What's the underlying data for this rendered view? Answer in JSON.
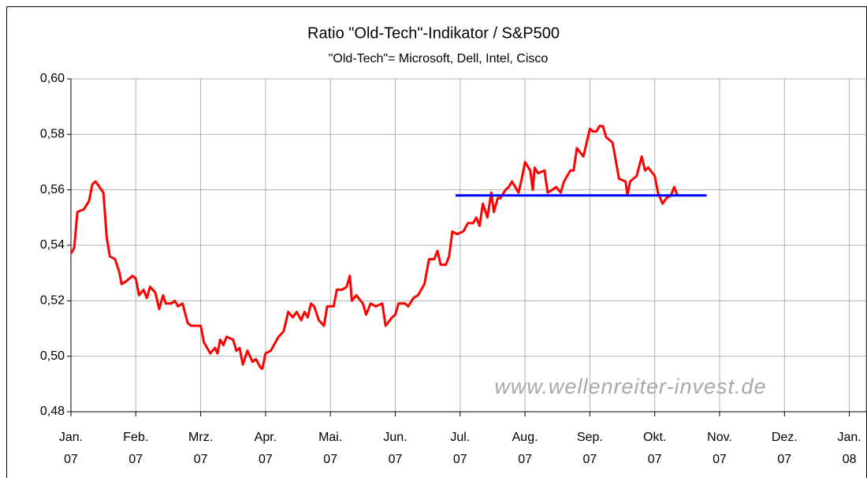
{
  "chart_data": {
    "type": "line",
    "title": "Ratio \"Old-Tech\"-Indikator / S&P500",
    "subtitle": "\"Old-Tech\"= Microsoft, Dell, Intel, Cisco",
    "annotation": "www.wellenreiter-invest.de",
    "grid": true,
    "xlim": [
      0,
      12.26
    ],
    "xticks": [
      {
        "value": 0,
        "label": "Jan.\n07"
      },
      {
        "value": 1,
        "label": "Feb.\n07"
      },
      {
        "value": 2,
        "label": "Mrz.\n07"
      },
      {
        "value": 3,
        "label": "Apr.\n07"
      },
      {
        "value": 4,
        "label": "Mai.\n07"
      },
      {
        "value": 5,
        "label": "Jun.\n07"
      },
      {
        "value": 6,
        "label": "Jul.\n07"
      },
      {
        "value": 7,
        "label": "Aug.\n07"
      },
      {
        "value": 8,
        "label": "Sep.\n07"
      },
      {
        "value": 9,
        "label": "Okt.\n07"
      },
      {
        "value": 10,
        "label": "Nov.\n07"
      },
      {
        "value": 11,
        "label": "Dez.\n07"
      },
      {
        "value": 12,
        "label": "Jan.\n08"
      }
    ],
    "ylim": [
      0.48,
      0.6
    ],
    "yticks": [
      {
        "value": 0.48,
        "label": "0,48"
      },
      {
        "value": 0.5,
        "label": "0,50"
      },
      {
        "value": 0.52,
        "label": "0,52"
      },
      {
        "value": 0.54,
        "label": "0,54"
      },
      {
        "value": 0.56,
        "label": "0,56"
      },
      {
        "value": 0.58,
        "label": "0,58"
      },
      {
        "value": 0.6,
        "label": "0,60"
      }
    ],
    "series": [
      {
        "color": "#ff0000",
        "x": [
          0,
          0.05,
          0.1,
          0.2,
          0.28,
          0.33,
          0.38,
          0.5,
          0.55,
          0.6,
          0.68,
          0.75,
          0.78,
          0.85,
          0.95,
          1.0,
          1.05,
          1.12,
          1.17,
          1.22,
          1.3,
          1.36,
          1.42,
          1.46,
          1.55,
          1.6,
          1.65,
          1.72,
          1.8,
          1.85,
          2.0,
          2.05,
          2.15,
          2.22,
          2.26,
          2.3,
          2.35,
          2.4,
          2.5,
          2.55,
          2.6,
          2.65,
          2.72,
          2.8,
          2.85,
          2.92,
          2.95,
          3.0,
          3.08,
          3.2,
          3.28,
          3.35,
          3.42,
          3.48,
          3.55,
          3.6,
          3.65,
          3.7,
          3.75,
          3.82,
          3.9,
          3.95,
          4.05,
          4.1,
          4.18,
          4.25,
          4.3,
          4.33,
          4.4,
          4.5,
          4.55,
          4.62,
          4.7,
          4.8,
          4.85,
          4.95,
          5.0,
          5.05,
          5.15,
          5.2,
          5.28,
          5.35,
          5.45,
          5.52,
          5.6,
          5.65,
          5.7,
          5.78,
          5.83,
          5.88,
          5.95,
          6.05,
          6.12,
          6.2,
          6.25,
          6.3,
          6.35,
          6.42,
          6.48,
          6.52,
          6.58,
          6.62,
          6.7,
          6.75,
          6.8,
          6.85,
          6.9,
          6.95,
          7.0,
          7.08,
          7.12,
          7.15,
          7.2,
          7.3,
          7.35,
          7.42,
          7.48,
          7.55,
          7.6,
          7.7,
          7.75,
          7.8,
          7.9,
          8.0,
          8.05,
          8.1,
          8.15,
          8.2,
          8.25,
          8.35,
          8.45,
          8.55,
          8.58,
          8.62,
          8.72,
          8.8,
          8.85,
          8.9,
          9.0,
          9.05,
          9.12,
          9.18,
          9.25,
          9.3,
          9.35
        ],
        "values": [
          0.537,
          0.539,
          0.552,
          0.553,
          0.556,
          0.562,
          0.563,
          0.559,
          0.543,
          0.536,
          0.535,
          0.53,
          0.526,
          0.527,
          0.529,
          0.528,
          0.522,
          0.524,
          0.521,
          0.525,
          0.523,
          0.517,
          0.522,
          0.519,
          0.519,
          0.52,
          0.518,
          0.519,
          0.512,
          0.511,
          0.511,
          0.505,
          0.501,
          0.503,
          0.501,
          0.506,
          0.504,
          0.507,
          0.506,
          0.502,
          0.503,
          0.497,
          0.502,
          0.498,
          0.499,
          0.496,
          0.4955,
          0.501,
          0.502,
          0.507,
          0.509,
          0.516,
          0.514,
          0.516,
          0.513,
          0.516,
          0.514,
          0.519,
          0.518,
          0.513,
          0.511,
          0.518,
          0.518,
          0.524,
          0.524,
          0.525,
          0.529,
          0.52,
          0.522,
          0.519,
          0.515,
          0.519,
          0.518,
          0.519,
          0.511,
          0.514,
          0.515,
          0.519,
          0.519,
          0.518,
          0.521,
          0.522,
          0.526,
          0.535,
          0.535,
          0.538,
          0.533,
          0.533,
          0.536,
          0.545,
          0.544,
          0.545,
          0.548,
          0.548,
          0.55,
          0.547,
          0.555,
          0.55,
          0.559,
          0.552,
          0.557,
          0.557,
          0.56,
          0.561,
          0.563,
          0.561,
          0.559,
          0.564,
          0.57,
          0.567,
          0.56,
          0.568,
          0.566,
          0.567,
          0.559,
          0.56,
          0.561,
          0.559,
          0.563,
          0.567,
          0.567,
          0.575,
          0.572,
          0.582,
          0.581,
          0.581,
          0.583,
          0.583,
          0.579,
          0.577,
          0.564,
          0.563,
          0.558,
          0.563,
          0.565,
          0.572,
          0.567,
          0.568,
          0.565,
          0.559,
          0.555,
          0.557,
          0.558,
          0.561,
          0.558
        ]
      },
      {
        "color": "#0000ff",
        "x": [
          5.93,
          9.8
        ],
        "values": [
          0.558,
          0.558
        ]
      }
    ]
  }
}
